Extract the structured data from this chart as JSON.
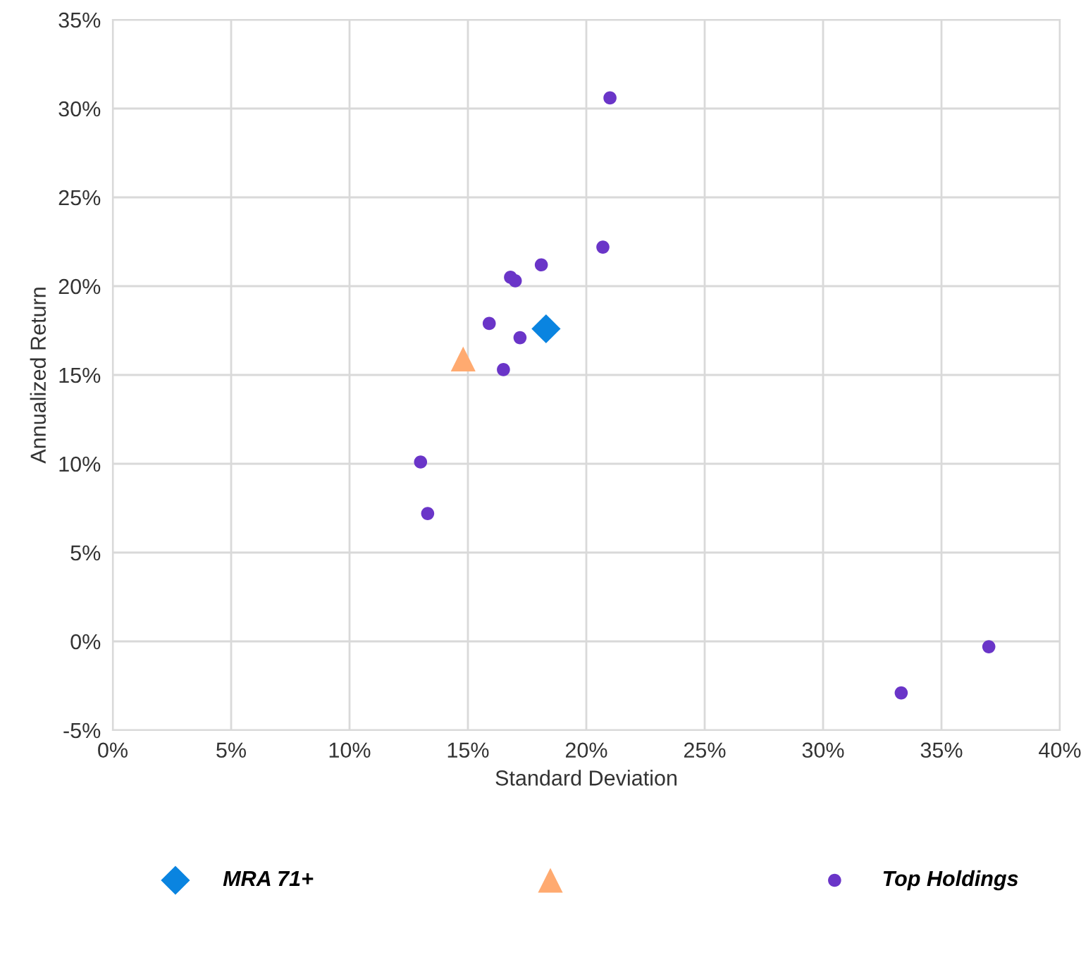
{
  "chart_data": {
    "type": "scatter",
    "xlabel": "Standard Deviation",
    "ylabel": "Annualized Return",
    "xlim": [
      0,
      40
    ],
    "xticks": [
      {
        "value": 0,
        "label": "0%"
      },
      {
        "value": 5,
        "label": "5%"
      },
      {
        "value": 10,
        "label": "10%"
      },
      {
        "value": 15,
        "label": "15%"
      },
      {
        "value": 20,
        "label": "20%"
      },
      {
        "value": 25,
        "label": "25%"
      },
      {
        "value": 30,
        "label": "30%"
      },
      {
        "value": 35,
        "label": "35%"
      },
      {
        "value": 40,
        "label": "40%"
      }
    ],
    "ylim": [
      -5,
      35
    ],
    "yticks": [
      {
        "value": -5,
        "label": "-5%"
      },
      {
        "value": 0,
        "label": "0%"
      },
      {
        "value": 5,
        "label": "5%"
      },
      {
        "value": 10,
        "label": "10%"
      },
      {
        "value": 15,
        "label": "15%"
      },
      {
        "value": 20,
        "label": "20%"
      },
      {
        "value": 25,
        "label": "25%"
      },
      {
        "value": 30,
        "label": "30%"
      },
      {
        "value": 35,
        "label": "35%"
      }
    ],
    "grid": true,
    "legend": "bottom",
    "series": [
      {
        "name": "MRA 71+",
        "color": "#0a84e0",
        "marker": "diamond",
        "x": [
          18.3
        ],
        "values": [
          17.6
        ]
      },
      {
        "color": "#ffaa70",
        "marker": "triangle",
        "x": [
          14.8
        ],
        "values": [
          15.9
        ]
      },
      {
        "name": "Top Holdings",
        "color": "#6a35c8",
        "marker": "circle",
        "x": [
          21.0,
          20.7,
          18.1,
          16.8,
          17.0,
          15.9,
          17.2,
          16.5,
          13.0,
          13.3,
          33.3,
          37.0
        ],
        "values": [
          30.6,
          22.2,
          21.2,
          20.5,
          20.3,
          17.9,
          17.1,
          15.3,
          10.1,
          7.2,
          -2.9,
          -0.3
        ]
      }
    ]
  }
}
